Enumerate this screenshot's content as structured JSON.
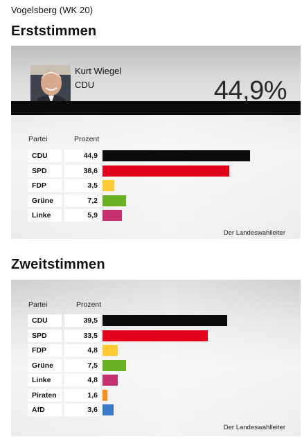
{
  "district": "Vogelsberg (WK 20)",
  "erststimmen": {
    "title": "Erststimmen",
    "winner": {
      "name": "Kurt Wiegel",
      "party": "CDU",
      "percent": "44,9%"
    },
    "col_party": "Partei",
    "col_percent": "Prozent",
    "rows": [
      {
        "party": "CDU",
        "value": "44,9",
        "number": 44.9,
        "color": "#0b0b0b"
      },
      {
        "party": "SPD",
        "value": "38,6",
        "number": 38.6,
        "color": "#e2001a"
      },
      {
        "party": "FDP",
        "value": "3,5",
        "number": 3.5,
        "color": "#ffcc33"
      },
      {
        "party": "Grüne",
        "value": "7,2",
        "number": 7.2,
        "color": "#6ab023"
      },
      {
        "party": "Linke",
        "value": "5,9",
        "number": 5.9,
        "color": "#c7306e"
      }
    ],
    "credit": "Der Landeswahlleiter"
  },
  "zweitstimmen": {
    "title": "Zweitstimmen",
    "col_party": "Partei",
    "col_percent": "Prozent",
    "rows": [
      {
        "party": "CDU",
        "value": "39,5",
        "number": 39.5,
        "color": "#0b0b0b"
      },
      {
        "party": "SPD",
        "value": "33,5",
        "number": 33.5,
        "color": "#e2001a"
      },
      {
        "party": "FDP",
        "value": "4,8",
        "number": 4.8,
        "color": "#ffcc33"
      },
      {
        "party": "Grüne",
        "value": "7,5",
        "number": 7.5,
        "color": "#6ab023"
      },
      {
        "party": "Linke",
        "value": "4,8",
        "number": 4.8,
        "color": "#c7306e"
      },
      {
        "party": "Piraten",
        "value": "1,6",
        "number": 1.6,
        "color": "#ff8c1a"
      },
      {
        "party": "AfD",
        "value": "3,6",
        "number": 3.6,
        "color": "#3a7bc8"
      }
    ],
    "credit": "Der Landeswahlleiter"
  }
}
